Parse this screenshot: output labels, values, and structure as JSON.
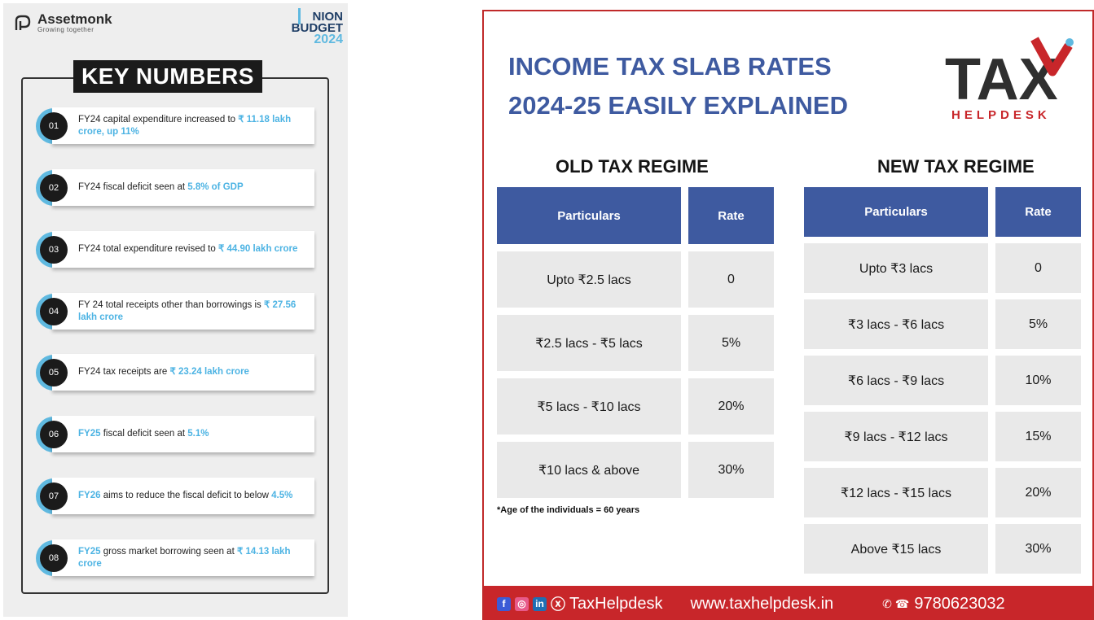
{
  "left": {
    "brand_name": "Assetmonk",
    "brand_tagline": "Growing together",
    "budget_line1": "NION",
    "budget_line2": "BUDGET",
    "budget_year": "2024",
    "title": "KEY NUMBERS",
    "items": [
      {
        "num": "01",
        "pre": "FY24 capital expenditure increased to ",
        "hl": "₹ 11.18 lakh crore, up 11%",
        "post": ""
      },
      {
        "num": "02",
        "pre": "FY24 fiscal deficit seen at ",
        "hl": "5.8% of GDP",
        "post": ""
      },
      {
        "num": "03",
        "pre": "FY24 total expenditure revised to ",
        "hl": "₹ 44.90 lakh crore",
        "post": ""
      },
      {
        "num": "04",
        "pre": "FY 24 total receipts other than borrowings is ",
        "hl": "₹ 27.56 lakh crore",
        "post": ""
      },
      {
        "num": "05",
        "pre": "FY24 tax receipts are ",
        "hl": "₹ 23.24 lakh crore",
        "post": ""
      },
      {
        "num": "06",
        "hl1": "FY25",
        "mid": " fiscal deficit seen at ",
        "hl2": "5.1%"
      },
      {
        "num": "07",
        "hl1": "FY26",
        "mid": " aims to reduce the fiscal deficit to below ",
        "hl2": "4.5%"
      },
      {
        "num": "08",
        "hl1": "FY25",
        "mid": " gross market borrowing seen at ",
        "hl2": "₹ 14.13 lakh crore"
      }
    ]
  },
  "right": {
    "title_line1": "INCOME TAX SLAB RATES",
    "title_line2": "2024-25 EASILY EXPLAINED",
    "logo_text": "TAX",
    "logo_sub": "HELPDESK",
    "old_title": "OLD TAX REGIME",
    "new_title": "NEW TAX REGIME",
    "col_particulars": "Particulars",
    "col_rate": "Rate",
    "old_rows": [
      {
        "p": "Upto ₹2.5 lacs",
        "r": "0"
      },
      {
        "p": "₹2.5 lacs - ₹5 lacs",
        "r": "5%"
      },
      {
        "p": "₹5 lacs - ₹10 lacs",
        "r": "20%"
      },
      {
        "p": "₹10 lacs & above",
        "r": "30%"
      }
    ],
    "new_rows": [
      {
        "p": "Upto ₹3 lacs",
        "r": "0"
      },
      {
        "p": "₹3 lacs - ₹6 lacs",
        "r": "5%"
      },
      {
        "p": "₹6 lacs - ₹9 lacs",
        "r": "10%"
      },
      {
        "p": "₹9 lacs - ₹12 lacs",
        "r": "15%"
      },
      {
        "p": "₹12 lacs - ₹15 lacs",
        "r": "20%"
      },
      {
        "p": "Above ₹15 lacs",
        "r": "30%"
      }
    ],
    "note": "*Age of the individuals = 60 years",
    "footer_handle": "TaxHelpdesk",
    "footer_site": "www.taxhelpdesk.in",
    "footer_phone": "9780623032"
  }
}
